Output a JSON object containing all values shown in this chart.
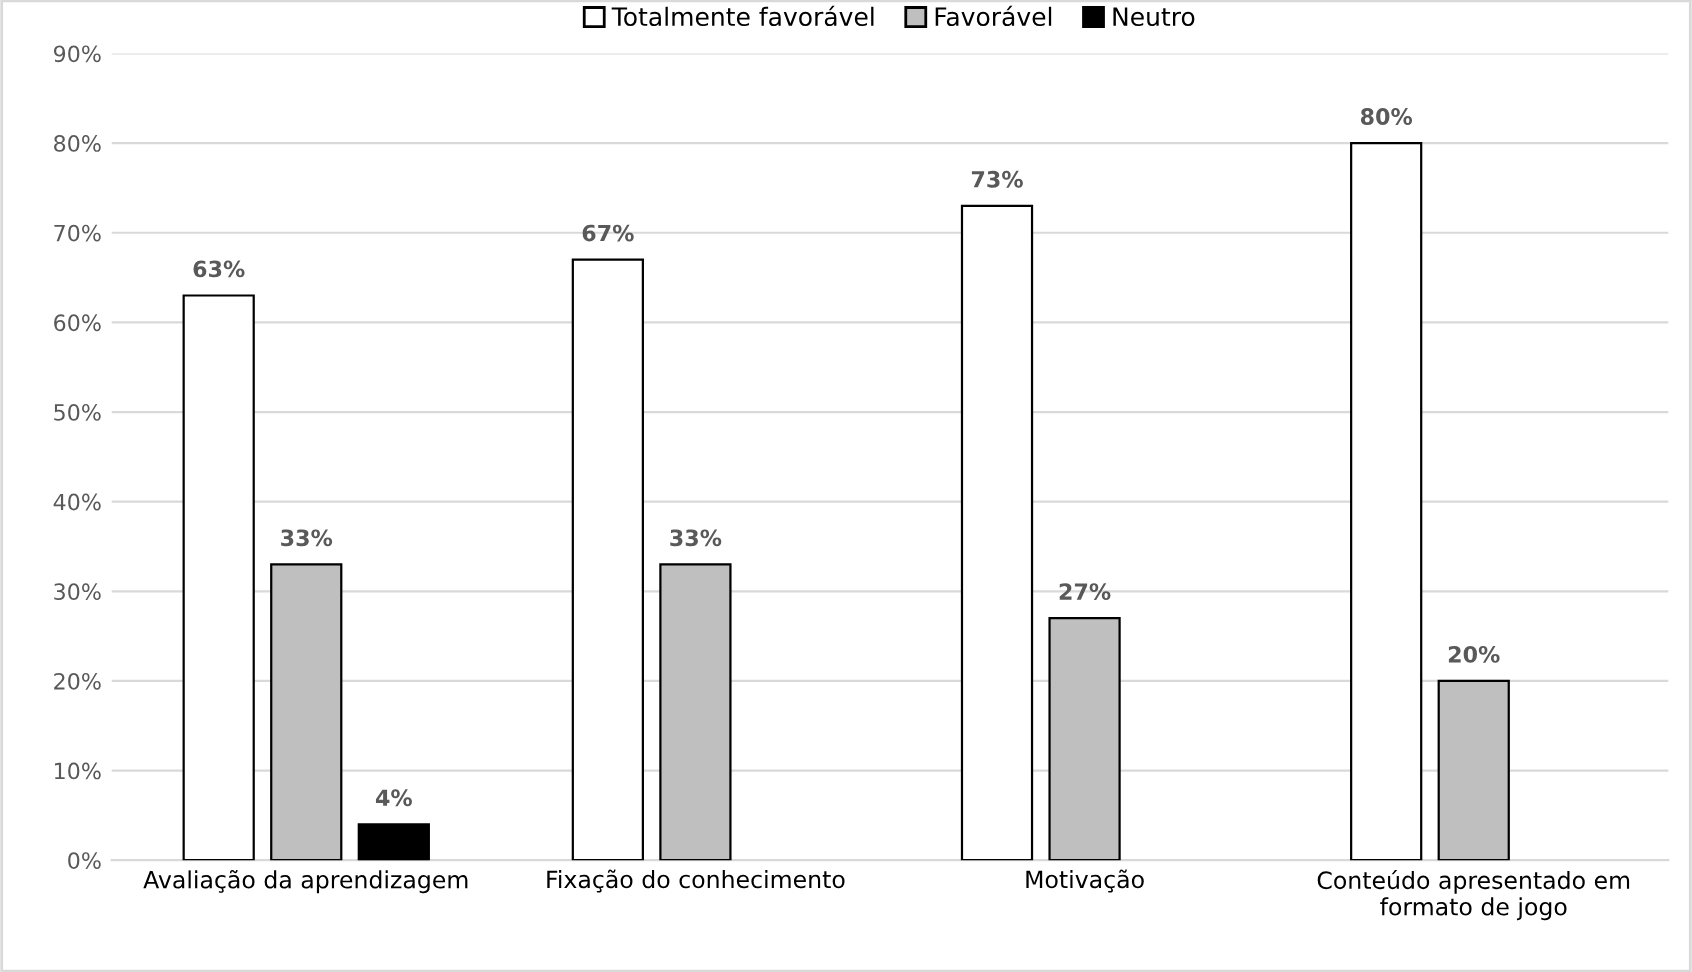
{
  "chart_data": {
    "type": "bar",
    "categories": [
      "Avaliação da aprendizagem",
      "Fixação do conhecimento",
      "Motivação",
      "Conteúdo apresentado em\nformato de jogo"
    ],
    "series": [
      {
        "name": "Totalmente favorável",
        "color": "#ffffff",
        "values": [
          63,
          67,
          73,
          80
        ],
        "value_labels": [
          "63%",
          "67%",
          "73%",
          "80%"
        ]
      },
      {
        "name": "Favorável",
        "color": "#bfbfbf",
        "values": [
          33,
          33,
          27,
          20
        ],
        "value_labels": [
          "33%",
          "33%",
          "27%",
          "20%"
        ]
      },
      {
        "name": "Neutro",
        "color": "#000000",
        "values": [
          4,
          null,
          null,
          null
        ],
        "value_labels": [
          "4%",
          null,
          null,
          null
        ]
      }
    ],
    "ylim": [
      0,
      90
    ],
    "yticks": [
      {
        "value": 0,
        "label": "0%"
      },
      {
        "value": 10,
        "label": "10%"
      },
      {
        "value": 20,
        "label": "20%"
      },
      {
        "value": 30,
        "label": "30%"
      },
      {
        "value": 40,
        "label": "40%"
      },
      {
        "value": 50,
        "label": "50%"
      },
      {
        "value": 60,
        "label": "60%"
      },
      {
        "value": 70,
        "label": "70%"
      },
      {
        "value": 80,
        "label": "80%"
      },
      {
        "value": 90,
        "label": "90%"
      }
    ],
    "grid": "y",
    "legend": "top"
  }
}
